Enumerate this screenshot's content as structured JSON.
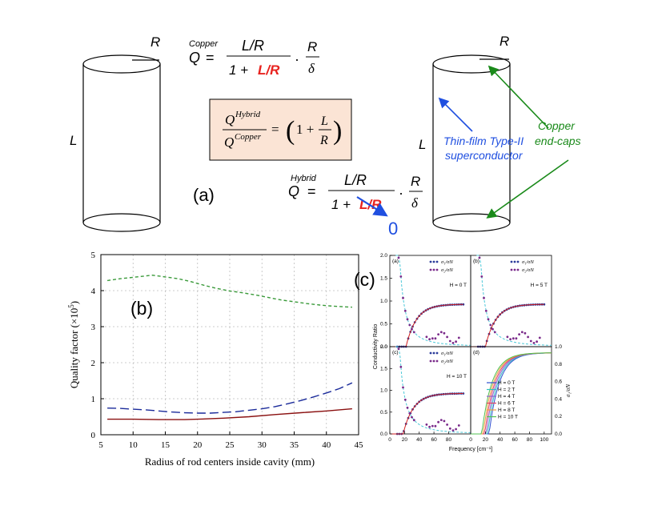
{
  "colors": {
    "red_text": "#e8231f",
    "blue_text": "#1f4fe0",
    "green_text": "#1a8a1a",
    "box_fill": "#fbe4d5"
  },
  "diagram": {
    "left_cylinder": {
      "R": "R",
      "L": "L"
    },
    "right_cylinder": {
      "R": "R",
      "L": "L"
    },
    "copper_eq": {
      "Q": "Q",
      "sup": "Copper",
      "eq": "=",
      "num": "L/R",
      "den_1": "1  +",
      "den_red": "L/R",
      "dot": "·",
      "rnum": "R",
      "rden": "δ"
    },
    "ratio_box": {
      "num_Q": "Q",
      "num_sup": "Hybrid",
      "den_Q": "Q",
      "den_sup": "Copper",
      "eq": "=",
      "one": "1 +",
      "L": "L",
      "R": "R",
      "lparen": "(",
      "rparen": ")"
    },
    "hybrid_eq": {
      "Q": "Q",
      "sup": "Hybrid",
      "eq": "=",
      "num": "L/R",
      "den_1": "1  +",
      "den_red": "L/R",
      "dot": "·",
      "rnum": "R",
      "rden": "δ",
      "zero": "0"
    },
    "panel_label_a": "(a)",
    "thin_film_label": [
      "Thin-film Type-II",
      "superconductor"
    ],
    "endcaps_label": [
      "Copper",
      "end-caps"
    ]
  },
  "chart_data": [
    {
      "id": "b",
      "type": "line",
      "panel_label": "(b)",
      "xlabel": "Radius of rod centers inside cavity (mm)",
      "ylabel": "Quality factor (×10",
      "ylabel_sup": "5",
      "ylabel_close": ")",
      "xlim": [
        5,
        45
      ],
      "ylim": [
        0,
        5
      ],
      "xticks": [
        "5",
        "10",
        "15",
        "20",
        "25",
        "30",
        "35",
        "40",
        "45"
      ],
      "yticks": [
        "0",
        "1",
        "2",
        "3",
        "4",
        "5"
      ],
      "grid": true,
      "series": [
        {
          "name": "green-dashed",
          "color": "#3a9a3a",
          "dash": "short",
          "x": [
            6,
            8,
            10,
            12,
            13,
            15,
            17,
            19,
            21,
            23,
            25,
            27,
            29,
            31,
            33,
            35,
            37,
            39,
            41,
            43,
            44
          ],
          "y": [
            4.28,
            4.33,
            4.37,
            4.41,
            4.43,
            4.38,
            4.33,
            4.25,
            4.15,
            4.06,
            3.99,
            3.94,
            3.88,
            3.81,
            3.74,
            3.69,
            3.64,
            3.6,
            3.57,
            3.55,
            3.54
          ]
        },
        {
          "name": "blue-dashed",
          "color": "#1a2a9a",
          "dash": "long",
          "x": [
            6,
            8,
            10,
            12,
            14,
            16,
            18,
            20,
            22,
            24,
            26,
            28,
            30,
            32,
            34,
            36,
            38,
            40,
            42,
            44
          ],
          "y": [
            0.74,
            0.73,
            0.71,
            0.69,
            0.66,
            0.63,
            0.61,
            0.6,
            0.6,
            0.62,
            0.64,
            0.68,
            0.72,
            0.78,
            0.86,
            0.95,
            1.05,
            1.16,
            1.28,
            1.44
          ]
        },
        {
          "name": "red-solid",
          "color": "#8a1010",
          "dash": "none",
          "x": [
            6,
            10,
            14,
            18,
            20,
            24,
            28,
            32,
            36,
            40,
            44
          ],
          "y": [
            0.43,
            0.43,
            0.42,
            0.42,
            0.43,
            0.46,
            0.5,
            0.56,
            0.61,
            0.66,
            0.72
          ]
        }
      ]
    },
    {
      "id": "c",
      "type": "scatter",
      "panel_label": "(c)",
      "ylabel": "Conductivity Ratio",
      "xlabel": "Frequency [cm⁻¹]",
      "right_ylabel": "σ₁/σN",
      "xlim": [
        0,
        110
      ],
      "ylim": [
        0,
        2.0
      ],
      "right_ylim": [
        0,
        1.0
      ],
      "yticks_left": [
        "0.0",
        "0.5",
        "1.0",
        "1.5",
        "2.0"
      ],
      "yticks_right": [
        "0.0",
        "0.2",
        "0.4",
        "0.6",
        "0.8",
        "1.0"
      ],
      "xticks_left": [
        "0",
        "20",
        "40",
        "60",
        "80"
      ],
      "xticks_right": [
        "0",
        "20",
        "40",
        "60",
        "80",
        "100"
      ],
      "legend_sigma1": "σ₁/σN",
      "legend_sigma2": "σ₂/σN",
      "subplots": [
        {
          "tag": "(a)",
          "field": "H = 0 T",
          "onset": 22
        },
        {
          "tag": "(b)",
          "field": "H = 5 T",
          "onset": 20
        },
        {
          "tag": "(c)",
          "field": "H = 10 T",
          "onset": 18
        },
        {
          "tag": "(d)",
          "legend": [
            "H = 0 T",
            "H = 2 T",
            "H = 4 T",
            "H = 6 T",
            "H = 8 T",
            "H = 10 T"
          ],
          "colors": [
            "#3050d0",
            "#30c0c0",
            "#9060d0",
            "#e04060",
            "#f0a040",
            "#50c050"
          ],
          "onsets": [
            25,
            23,
            21,
            19,
            17,
            15
          ]
        }
      ]
    }
  ]
}
